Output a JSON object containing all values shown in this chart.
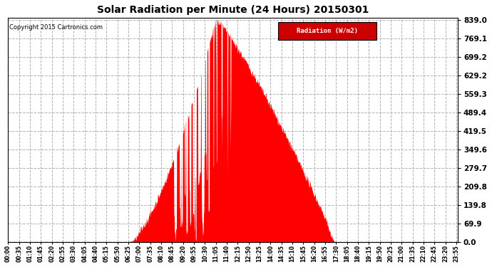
{
  "title": "Solar Radiation per Minute (24 Hours) 20150301",
  "copyright_text": "Copyright 2015 Cartronics.com",
  "legend_label": "Radiation (W/m2)",
  "yticks": [
    0.0,
    69.9,
    139.8,
    209.8,
    279.7,
    349.6,
    419.5,
    489.4,
    559.3,
    629.2,
    699.2,
    769.1,
    839.0
  ],
  "ymax": 839.0,
  "ymin": 0.0,
  "fill_color": "#FF0000",
  "line_color": "#FF0000",
  "grid_color": "#AAAAAA",
  "background_color": "#FFFFFF",
  "dashed_zero_color": "#FF0000",
  "legend_bg": "#CC0000",
  "legend_text_color": "#FFFFFF",
  "minutes_per_day": 1440,
  "sunrise_min": 385,
  "sunset_min": 1050,
  "peak_min": 665,
  "peak_val": 839.0,
  "xtick_step": 35
}
